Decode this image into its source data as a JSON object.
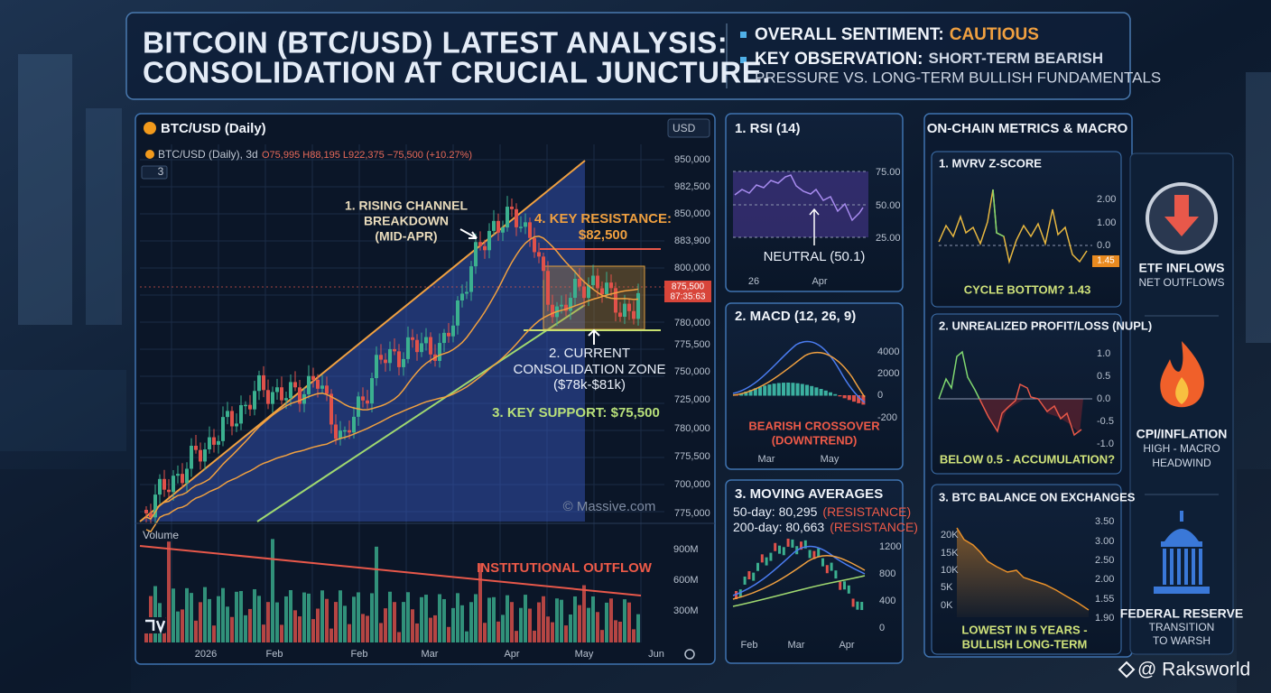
{
  "header": {
    "title": [
      "BITCOIN (BTC/USD) LATEST ANALYSIS:",
      "CONSOLIDATION AT CRUCIAL JUNCTURE."
    ],
    "sentiment_label": "OVERALL SENTIMENT:",
    "sentiment_value": "CAUTIOUS",
    "observation_label": "KEY OBSERVATION:",
    "observation_text": [
      "SHORT-TERM BEARISH",
      "PRESSURE VS. LONG-TERM BULLISH FUNDAMENTALS"
    ]
  },
  "main_chart": {
    "title": "BTC/USD (Daily)",
    "currency": "USD",
    "legend": "BTC/USD (Daily), 3d",
    "ohlc": "O75,995 H88,195 L922,375 −75,500 (+10.27%)",
    "indicator_count": "3",
    "price_axis": [
      "950,000",
      "982,500",
      "850,000",
      "883,900",
      "800,000",
      "780,000",
      "775,500",
      "750,000",
      "725,000",
      "780,000",
      "775,500",
      "700,000",
      "775,000"
    ],
    "price_tag": [
      "875,500",
      "87:35:63"
    ],
    "channel_note": [
      "1. RISING CHANNEL",
      "BREAKDOWN",
      "(MID-APR)"
    ],
    "resistance_note": [
      "4. KEY RESISTANCE:",
      "$82,500"
    ],
    "consolidation_note": [
      "2. CURRENT",
      "CONSOLIDATION ZONE",
      "($78k-$81k)"
    ],
    "support_note": "3. KEY SUPPORT: $75,500",
    "watermark": "© Massive.com",
    "volume_label": "Volume",
    "volume_note": "INSTITUTIONAL OUTFLOW",
    "volume_axis": [
      "900M",
      "600M",
      "300M"
    ],
    "x_labels": [
      "2026",
      "Feb",
      "Feb",
      "Mar",
      "Apr",
      "May",
      "Jun"
    ]
  },
  "indicators": [
    {
      "title": "1. RSI (14)",
      "axis": [
        "75.00",
        "50.00",
        "25.00"
      ],
      "callout": [
        "NEUTRAL (50.1)"
      ],
      "x_labels": [
        "26",
        "Apr"
      ]
    },
    {
      "title": "2. MACD (12, 26, 9)",
      "axis": [
        "4000",
        "2000",
        "0",
        "-200"
      ],
      "callout": [
        "BEARISH CROSSOVER",
        "(DOWNTREND)"
      ],
      "x_labels": [
        "Mar",
        "May"
      ]
    },
    {
      "title": "3. MOVING AVERAGES",
      "lines": [
        [
          "50-day: 80,295",
          "(RESISTANCE)"
        ],
        [
          "200-day: 80,663",
          "(RESISTANCE)"
        ]
      ],
      "axis": [
        "1200",
        "800",
        "400",
        "0"
      ],
      "x_labels": [
        "Feb",
        "Mar",
        "Apr"
      ]
    }
  ],
  "on_chain": {
    "title": "ON-CHAIN METRICS & MACRO",
    "metrics": [
      {
        "title": "1. MVRV Z-SCORE",
        "axis": [
          "2.00",
          "1.00",
          "0.0"
        ],
        "tag": "1.45",
        "callout": [
          "CYCLE BOTTOM? 1.43"
        ]
      },
      {
        "title": "2. UNREALIZED PROFIT/LOSS (NUPL)",
        "axis": [
          "1.0",
          "0.5",
          "0.0",
          "-0.5",
          "-1.0"
        ],
        "callout": [
          "BELOW 0.5 - ACCUMULATION?"
        ]
      },
      {
        "title": "3. BTC BALANCE ON EXCHANGES",
        "left_axis": [
          "20K",
          "15K",
          "10K",
          "5K",
          "0K"
        ],
        "axis": [
          "3.50",
          "3.00",
          "2.50",
          "2.00",
          "1.55",
          "1.90"
        ],
        "callout": [
          "LOWEST IN 5 YEARS -",
          "BULLISH LONG-TERM"
        ]
      }
    ]
  },
  "macro": [
    {
      "title": "ETF INFLOWS",
      "lines": [
        "NET OUTFLOWS"
      ]
    },
    {
      "title": "CPI/INFLATION",
      "lines": [
        "HIGH - MACRO",
        "HEADWIND"
      ]
    },
    {
      "title": "FEDERAL RESERVE",
      "lines": [
        "TRANSITION",
        "TO WARSH"
      ]
    }
  ],
  "credit": "@ Raksworld"
}
